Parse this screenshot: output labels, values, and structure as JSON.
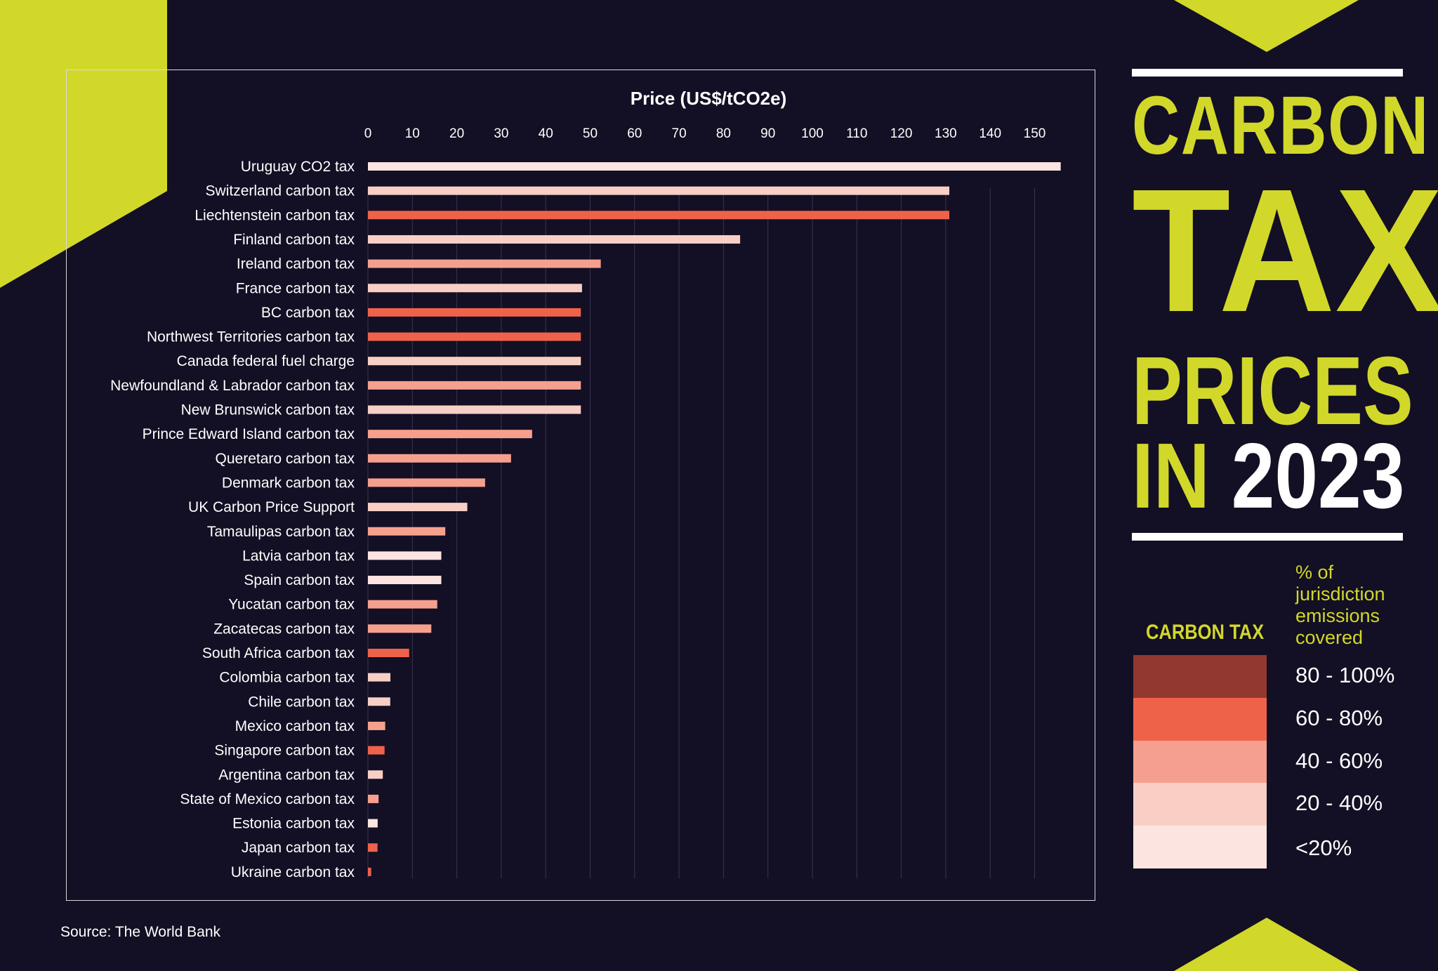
{
  "chart_data": {
    "type": "bar",
    "orientation": "horizontal",
    "title": "Price (US$/tCO2e)",
    "xlim": [
      0,
      160
    ],
    "xticks": [
      0,
      10,
      20,
      30,
      40,
      50,
      60,
      70,
      80,
      90,
      100,
      110,
      120,
      130,
      140,
      150
    ],
    "grid": true,
    "categories": [
      "Uruguay CO2 tax",
      "Switzerland carbon tax",
      "Liechtenstein carbon tax",
      "Finland carbon tax",
      "Ireland carbon tax",
      "France carbon tax",
      "BC carbon tax",
      "Northwest Territories carbon tax",
      "Canada federal fuel charge",
      "Newfoundland & Labrador carbon tax",
      "New Brunswick carbon tax",
      "Prince Edward Island carbon tax",
      "Queretaro carbon tax",
      "Denmark carbon tax",
      "UK Carbon Price Support",
      "Tamaulipas carbon tax",
      "Latvia carbon tax",
      "Spain carbon tax",
      "Yucatan carbon tax",
      "Zacatecas carbon tax",
      "South Africa carbon tax",
      "Colombia carbon tax",
      "Chile carbon tax",
      "Mexico carbon tax",
      "Singapore carbon tax",
      "Argentina carbon tax",
      "State of Mexico carbon tax",
      "Estonia carbon tax",
      "Japan carbon tax",
      "Ukraine carbon tax"
    ],
    "values": [
      155.87,
      130.81,
      130.81,
      83.74,
      52.39,
      48.17,
      47.91,
      47.91,
      47.91,
      47.91,
      47.91,
      36.94,
      32.2,
      26.36,
      22.36,
      17.41,
      16.51,
      16.51,
      15.6,
      14.26,
      9.28,
      5.06,
      5.02,
      3.89,
      3.74,
      3.35,
      2.4,
      2.19,
      2.16,
      0.73
    ],
    "coverage_band": [
      "<20%",
      "20 - 40%",
      "60 - 80%",
      "20 - 40%",
      "40 - 60%",
      "20 - 40%",
      "60 - 80%",
      "60 - 80%",
      "20 - 40%",
      "40 - 60%",
      "20 - 40%",
      "40 - 60%",
      "40 - 60%",
      "40 - 60%",
      "20 - 40%",
      "40 - 60%",
      "<20%",
      "<20%",
      "40 - 60%",
      "40 - 60%",
      "60 - 80%",
      "20 - 40%",
      "20 - 40%",
      "40 - 60%",
      "60 - 80%",
      "20 - 40%",
      "40 - 60%",
      "<20%",
      "60 - 80%",
      "60 - 80%"
    ]
  },
  "title": {
    "line1": "CARBON",
    "line2": "TAX",
    "line3": "PRICES",
    "line4a": "IN",
    "line4b": "2023"
  },
  "legend": {
    "heading": "CARBON TAX",
    "note": "% of jurisdiction emissions covered",
    "items": [
      {
        "label": "80 - 100%",
        "color": "#923830"
      },
      {
        "label": "60 - 80%",
        "color": "#ef624a"
      },
      {
        "label": "40 - 60%",
        "color": "#f5a08e"
      },
      {
        "label": "20 - 40%",
        "color": "#f9cfc5"
      },
      {
        "label": "<20%",
        "color": "#fce5e1"
      }
    ]
  },
  "source": "Source: The World Bank",
  "colors": {
    "background": "#130f24",
    "accent": "#d1d82a"
  }
}
